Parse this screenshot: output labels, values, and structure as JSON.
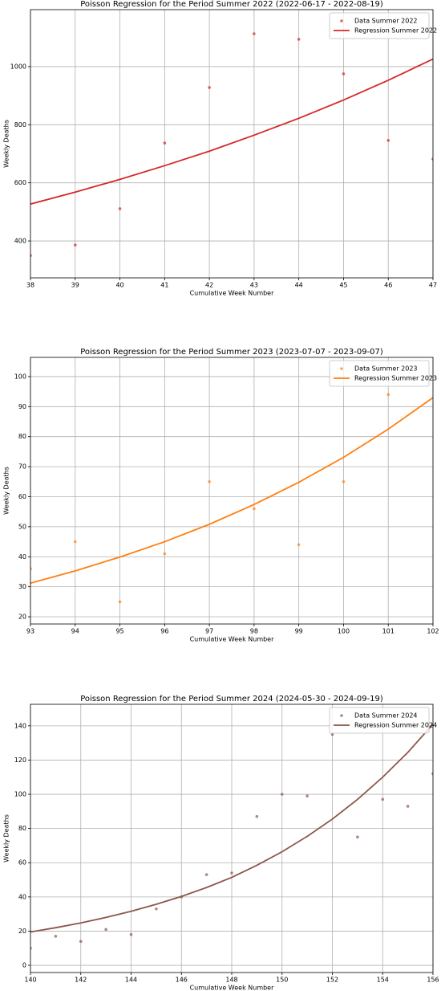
{
  "chart_data": [
    {
      "type": "line",
      "title": "Poisson Regression for the Period Summer 2022 (2022-06-17 - 2022-08-19)",
      "xlabel": "Cumulative Week Number",
      "ylabel": "Weekly Deaths",
      "x": [
        38,
        39,
        40,
        41,
        42,
        43,
        44,
        45,
        46,
        47
      ],
      "series": [
        {
          "name": "Data Summer 2022",
          "color": "#d62728",
          "mode": "markers",
          "values": [
            350,
            386,
            511,
            737,
            928,
            1113,
            1094,
            975,
            746,
            682
          ]
        },
        {
          "name": "Regression Summer 2022",
          "color": "#d62728",
          "mode": "line",
          "values": [
            527,
            568,
            612,
            659,
            709,
            764,
            822,
            885,
            953,
            1026
          ]
        }
      ],
      "xlim": [
        38,
        47
      ],
      "xticks": [
        38,
        39,
        40,
        41,
        42,
        43,
        44,
        45,
        46,
        47
      ],
      "ylim": [
        273,
        1196
      ],
      "yticks": [
        400,
        600,
        800,
        1000
      ],
      "grid": true,
      "legend": "upper right"
    },
    {
      "type": "line",
      "title": "Poisson Regression for the Period Summer 2023 (2023-07-07 - 2023-09-07)",
      "xlabel": "Cumulative Week Number",
      "ylabel": "Weekly Deaths",
      "x": [
        93,
        94,
        95,
        96,
        97,
        98,
        99,
        100,
        101,
        102
      ],
      "series": [
        {
          "name": "Data Summer 2023",
          "color": "#ff7f0e",
          "mode": "markers",
          "values": [
            36,
            45,
            25,
            41,
            65,
            56,
            44,
            65,
            94,
            null
          ]
        },
        {
          "name": "Regression Summer 2023",
          "color": "#ff7f0e",
          "mode": "line",
          "values": [
            31.2,
            35.3,
            39.9,
            45.0,
            50.8,
            57.4,
            64.8,
            73.1,
            82.5,
            93
          ]
        }
      ],
      "xlim": [
        93,
        102
      ],
      "xticks": [
        93,
        94,
        95,
        96,
        97,
        98,
        99,
        100,
        101,
        102
      ],
      "ylim": [
        17.6,
        106.4
      ],
      "yticks": [
        20,
        30,
        40,
        50,
        60,
        70,
        80,
        90,
        100
      ],
      "grid": true,
      "legend": "upper right"
    },
    {
      "type": "line",
      "title": "Poisson Regression for the Period Summer 2024 (2024-05-30 - 2024-09-19)",
      "xlabel": "Cumulative Week Number",
      "ylabel": "Weekly Deaths",
      "x": [
        140,
        141,
        142,
        143,
        144,
        145,
        146,
        147,
        148,
        149,
        150,
        151,
        152,
        153,
        154,
        155,
        156
      ],
      "series": [
        {
          "name": "Data Summer 2024",
          "color": "#8c564b",
          "mode": "markers",
          "values": [
            10,
            17,
            14,
            21,
            18,
            33,
            40,
            53,
            54,
            87,
            100,
            99,
            135,
            75,
            97,
            93,
            112
          ]
        },
        {
          "name": "Regression Summer 2024",
          "color": "#8c564b",
          "mode": "line",
          "values": [
            19.5,
            22,
            24.8,
            28,
            31.6,
            35.7,
            40.3,
            45.5,
            51.4,
            58.5,
            66.4,
            75.4,
            85.5,
            97,
            110,
            124.5,
            141
          ]
        }
      ],
      "xlim": [
        140,
        156
      ],
      "xticks": [
        140,
        142,
        144,
        146,
        148,
        150,
        152,
        154,
        156
      ],
      "ylim": [
        -4.2,
        152.6
      ],
      "yticks": [
        0,
        20,
        40,
        60,
        80,
        100,
        120,
        140
      ],
      "grid": true,
      "legend": "upper right"
    }
  ]
}
